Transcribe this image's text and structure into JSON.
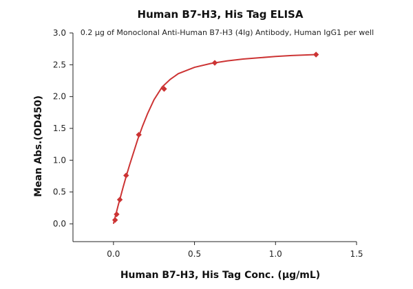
{
  "chart_data": {
    "type": "scatter",
    "title": "Human B7-H3, His Tag ELISA",
    "subtitle": "0.2 μg of Monoclonal Anti-Human B7-H3 (4Ig) Antibody, Human IgG1 per well",
    "xlabel": "Human B7-H3, His Tag Conc. (μg/mL)",
    "ylabel": "Mean Abs.(OD450)",
    "xlim": [
      -0.25,
      1.5
    ],
    "ylim": [
      -0.28,
      3.0
    ],
    "x_ticks": [
      0.0,
      0.5,
      1.0,
      1.5
    ],
    "x_tick_labels": [
      "0.0",
      "0.5",
      "1.0",
      "1.5"
    ],
    "y_ticks": [
      0.0,
      0.5,
      1.0,
      1.5,
      2.0,
      2.5,
      3.0
    ],
    "y_tick_labels": [
      "0.0",
      "0.5",
      "1.0",
      "1.5",
      "2.0",
      "2.5",
      "3.0"
    ],
    "grid": false,
    "color": "#cc3333",
    "series": [
      {
        "x": [
          0.0098,
          0.0195,
          0.0391,
          0.0781,
          0.1563,
          0.3125,
          0.625,
          1.25
        ],
        "y": [
          0.06,
          0.15,
          0.38,
          0.76,
          1.4,
          2.12,
          2.53,
          2.66
        ]
      }
    ],
    "fit": {
      "x": [
        0.0,
        0.01,
        0.02,
        0.03,
        0.04,
        0.06,
        0.08,
        0.1,
        0.12,
        0.15,
        0.18,
        0.21,
        0.25,
        0.3,
        0.35,
        0.4,
        0.5,
        0.6,
        0.7,
        0.8,
        0.9,
        1.0,
        1.1,
        1.25
      ],
      "y": [
        0.0,
        0.1,
        0.2,
        0.3,
        0.39,
        0.58,
        0.76,
        0.93,
        1.09,
        1.33,
        1.54,
        1.73,
        1.95,
        2.15,
        2.27,
        2.36,
        2.46,
        2.52,
        2.56,
        2.59,
        2.61,
        2.63,
        2.645,
        2.66
      ]
    }
  }
}
